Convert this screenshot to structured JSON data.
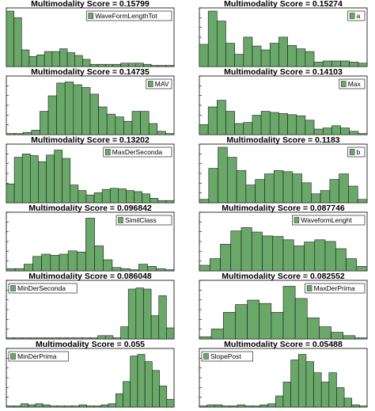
{
  "colors": {
    "bar_fill": "#6aa86a",
    "bar_stroke": "#1a1a1a",
    "axis": "#000000",
    "legend_border": "#000000"
  },
  "chart_data": [
    {
      "type": "bar",
      "title": "Multimodality Score = 0.15799",
      "legend": "WaveFormLengthTot",
      "legend_position": "top-right",
      "grid": false,
      "values": [
        1.0,
        0.88,
        0.3,
        0.18,
        0.21,
        0.27,
        0.27,
        0.32,
        0.25,
        0.2,
        0.13,
        0.04,
        0.04,
        0.04,
        0.04,
        0.06,
        0.06,
        0.06,
        0.04,
        0.02,
        0.02,
        0.02
      ]
    },
    {
      "type": "bar",
      "title": "Multimodality Score = 0.15274",
      "legend": "a",
      "legend_position": "top-right",
      "grid": false,
      "values": [
        0.4,
        1.0,
        0.82,
        0.42,
        0.22,
        0.53,
        0.37,
        0.3,
        0.42,
        0.53,
        0.38,
        0.32,
        0.27,
        0.08,
        0.1,
        0.1,
        0.1,
        0.08,
        0.06
      ]
    },
    {
      "type": "bar",
      "title": "Multimodality Score = 0.14735",
      "legend": "MAV",
      "legend_position": "top-right",
      "grid": false,
      "values": [
        0.02,
        0.02,
        0.04,
        0.08,
        0.42,
        0.7,
        0.93,
        0.95,
        0.9,
        0.85,
        0.73,
        0.5,
        0.37,
        0.32,
        0.24,
        0.42,
        0.42,
        0.2,
        0.06,
        0.02
      ]
    },
    {
      "type": "bar",
      "title": "Multimodality Score = 0.14103",
      "legend": "Max",
      "legend_position": "top-right",
      "grid": false,
      "values": [
        0.18,
        0.5,
        0.62,
        0.42,
        0.2,
        0.22,
        0.35,
        0.42,
        0.4,
        0.38,
        0.36,
        0.34,
        0.26,
        0.1,
        0.12,
        0.16,
        0.12,
        0.06,
        0.02
      ]
    },
    {
      "type": "bar",
      "title": "Multimodality Score = 0.13202",
      "legend": "MaxDerSeconda",
      "legend_position": "top-right",
      "grid": false,
      "values": [
        0.34,
        0.82,
        0.88,
        0.85,
        0.74,
        0.86,
        0.95,
        0.8,
        0.32,
        0.22,
        0.14,
        0.18,
        0.24,
        0.26,
        0.25,
        0.22,
        0.2,
        0.16,
        0.08,
        0.04,
        0.04
      ]
    },
    {
      "type": "bar",
      "title": "Multimodality Score = 0.1183",
      "legend": "b",
      "legend_position": "top-right",
      "grid": false,
      "values": [
        0.06,
        0.62,
        1.0,
        0.82,
        0.58,
        0.32,
        0.42,
        0.52,
        0.58,
        0.56,
        0.52,
        0.36,
        0.16,
        0.22,
        0.42,
        0.52,
        0.3,
        0.06
      ]
    },
    {
      "type": "bar",
      "title": "Multimodality Score = 0.096842",
      "legend": "SimilClass",
      "legend_position": "top-right",
      "grid": false,
      "values": [
        0.04,
        0.04,
        0.12,
        0.26,
        0.3,
        0.28,
        0.3,
        0.36,
        0.34,
        0.95,
        0.45,
        0.2,
        0.06,
        0.04,
        0.02,
        0.12,
        0.08,
        0.04,
        0.02
      ]
    },
    {
      "type": "bar",
      "title": "Multimodality Score = 0.087746",
      "legend": "WaveformLenght",
      "legend_position": "top-right",
      "grid": false,
      "values": [
        0.1,
        0.22,
        0.48,
        0.72,
        0.78,
        0.7,
        0.63,
        0.62,
        0.56,
        0.45,
        0.52,
        0.56,
        0.53,
        0.4,
        0.22,
        0.08
      ]
    },
    {
      "type": "bar",
      "title": "Multimodality Score = 0.086048",
      "legend": "MinDerSeconda",
      "legend_position": "top-left",
      "grid": false,
      "values": [
        0.02,
        0.02,
        0.02,
        0.02,
        0.02,
        0.02,
        0.02,
        0.02,
        0.02,
        0.02,
        0.02,
        0.02,
        0.06,
        0.06,
        0.02,
        0.22,
        0.9,
        0.92,
        0.9,
        0.42,
        0.78,
        0.2
      ]
    },
    {
      "type": "bar",
      "title": "Multimodality Score = 0.082552",
      "legend": "MaxDerPrima",
      "legend_position": "top-right",
      "grid": false,
      "values": [
        0.04,
        0.18,
        0.48,
        0.62,
        0.7,
        0.64,
        0.48,
        0.95,
        0.73,
        0.38,
        0.22,
        0.12,
        0.06,
        0.02
      ]
    },
    {
      "type": "bar",
      "title": "Multimodality Score = 0.055",
      "legend": "MinDerPrima",
      "legend_position": "top-left",
      "grid": false,
      "values": [
        0.02,
        0.02,
        0.06,
        0.04,
        0.06,
        0.04,
        0.02,
        0.02,
        0.02,
        0.02,
        0.04,
        0.02,
        0.02,
        0.04,
        0.06,
        0.24,
        0.46,
        0.92,
        0.95,
        0.82,
        0.66,
        0.38,
        0.14
      ]
    },
    {
      "type": "bar",
      "title": "Multimodality Score = 0.05488",
      "legend": "SlopePost",
      "legend_position": "top-left",
      "grid": false,
      "values": [
        0.02,
        0.04,
        0.04,
        0.02,
        0.02,
        0.04,
        0.02,
        0.02,
        0.04,
        0.06,
        0.2,
        0.45,
        0.85,
        0.95,
        0.82,
        0.62,
        0.45,
        0.62,
        0.35,
        0.16,
        0.04,
        0.02
      ]
    }
  ]
}
